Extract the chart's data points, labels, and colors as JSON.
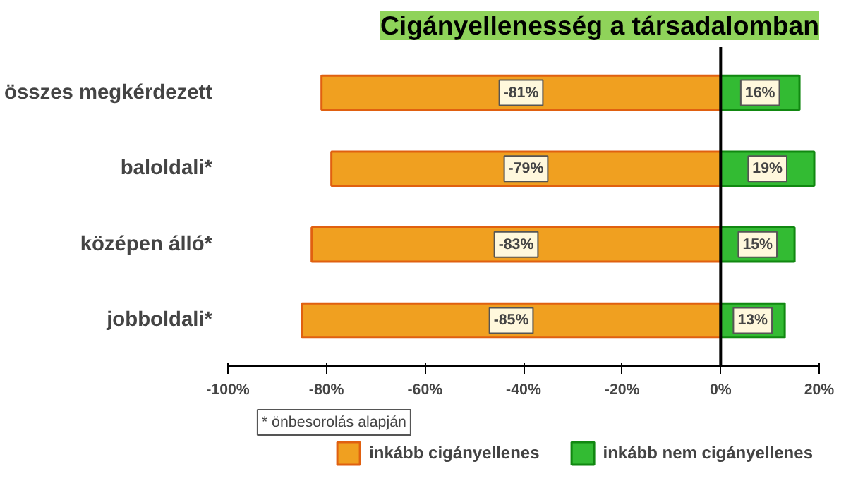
{
  "chart_data": {
    "type": "bar",
    "orientation": "horizontal",
    "stacked": true,
    "title": "Cigányellenesség a társadalomban",
    "categories": [
      "összes megkérdezett",
      "baloldali*",
      "középen álló*",
      "jobboldali*"
    ],
    "series": [
      {
        "name": "inkább cigányellenes",
        "color": "#f0a020",
        "values": [
          -81,
          -79,
          -83,
          -85
        ],
        "value_labels": [
          "-81%",
          "-79%",
          "-83%",
          "-85%"
        ]
      },
      {
        "name": "inkább nem cigányellenes",
        "color": "#33bb33",
        "values": [
          16,
          19,
          15,
          13
        ],
        "value_labels": [
          "16%",
          "19%",
          "15%",
          "13%"
        ]
      }
    ],
    "xlim": [
      -100,
      20
    ],
    "xticks": [
      {
        "value": -100,
        "label": "-100%"
      },
      {
        "value": -80,
        "label": "-80%"
      },
      {
        "value": -60,
        "label": "-60%"
      },
      {
        "value": -40,
        "label": "-40%"
      },
      {
        "value": -20,
        "label": "-20%"
      },
      {
        "value": 0,
        "label": "0%"
      },
      {
        "value": 20,
        "label": "20%"
      }
    ],
    "ref_lines": [
      {
        "axis": "x",
        "value": 0,
        "color": "#000000"
      }
    ],
    "annotations": [
      "* önbesorolás alapján"
    ],
    "legend": "bottom",
    "grid": false
  }
}
